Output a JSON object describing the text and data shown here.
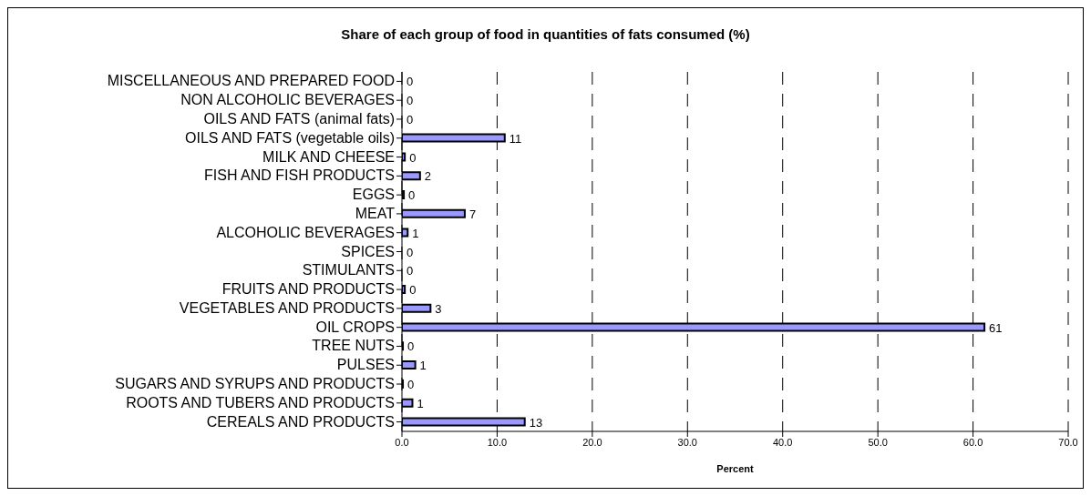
{
  "chart_data": {
    "type": "bar",
    "orientation": "horizontal",
    "title": "Share of each group of food in quantities of fats consumed (%)",
    "xlabel": "Percent",
    "categories": [
      "MISCELLANEOUS AND PREPARED FOOD",
      "NON ALCOHOLIC BEVERAGES",
      "OILS AND FATS (animal fats)",
      "OILS AND FATS (vegetable oils)",
      "MILK AND CHEESE",
      "FISH AND FISH PRODUCTS",
      "EGGS",
      "MEAT",
      "ALCOHOLIC BEVERAGES",
      "SPICES",
      "STIMULANTS",
      "FRUITS AND PRODUCTS",
      "VEGETABLES AND PRODUCTS",
      "OIL CROPS",
      "TREE NUTS",
      "PULSES",
      "SUGARS AND SYRUPS AND PRODUCTS",
      "ROOTS AND TUBERS AND PRODUCTS",
      "CEREALS AND PRODUCTS"
    ],
    "values": [
      0,
      0,
      0,
      10.8,
      0.3,
      1.9,
      0.2,
      6.6,
      0.6,
      0,
      0,
      0.3,
      3.0,
      61.2,
      0.1,
      1.4,
      0.1,
      1.1,
      12.9
    ],
    "value_labels": [
      "0",
      "0",
      "0",
      "11",
      "0",
      "2",
      "0",
      "7",
      "1",
      "0",
      "0",
      "0",
      "3",
      "61",
      "0",
      "1",
      "0",
      "1",
      "13"
    ],
    "color": "#9999ff",
    "xlim": [
      0,
      70
    ],
    "xticks": [
      {
        "value": 0,
        "label": "0.0"
      },
      {
        "value": 10,
        "label": "10.0"
      },
      {
        "value": 20,
        "label": "20.0"
      },
      {
        "value": 30,
        "label": "30.0"
      },
      {
        "value": 40,
        "label": "40.0"
      },
      {
        "value": 50,
        "label": "50.0"
      },
      {
        "value": 60,
        "label": "60.0"
      },
      {
        "value": 70,
        "label": "70.0"
      }
    ],
    "grid": "x"
  }
}
